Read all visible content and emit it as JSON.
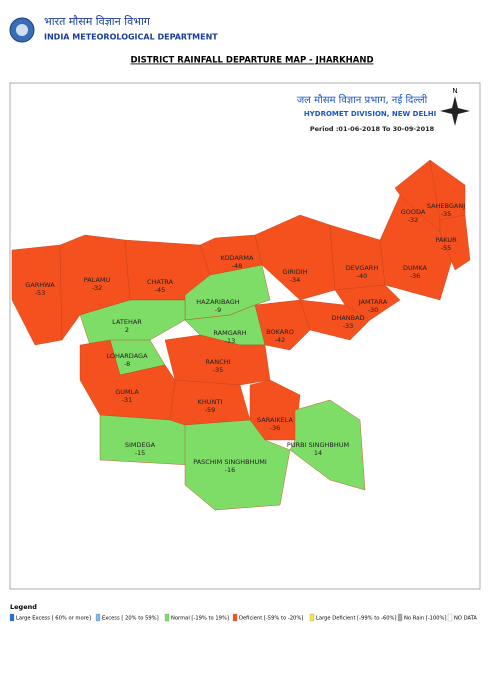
{
  "header": {
    "title_hindi": "भारत मौसम विज्ञान विभाग",
    "title": "INDIA METEOROLOGICAL DEPARTMENT"
  },
  "map_title": "DISTRICT RAINFALL DEPARTURE MAP - JHARKHAND",
  "division": {
    "hindi": "जल मौसम विज्ञान प्रभाग, नई दिल्ली",
    "name": "HYDROMET DIVISION, NEW DELHI",
    "period": "Period :01-06-2018 To 30-09-2018"
  },
  "compass": "N",
  "districts": [
    {
      "name": "GARHWA",
      "value": -53,
      "color": "#f4511e"
    },
    {
      "name": "PALAMU",
      "value": -32,
      "color": "#f4511e"
    },
    {
      "name": "CHATRA",
      "value": -45,
      "color": "#f4511e"
    },
    {
      "name": "KODARMA",
      "value": -48,
      "color": "#f4511e"
    },
    {
      "name": "GIRIDIH",
      "value": -34,
      "color": "#f4511e"
    },
    {
      "name": "DEVGARH",
      "value": -40,
      "color": "#f4511e"
    },
    {
      "name": "DUMKA",
      "value": -36,
      "color": "#f4511e"
    },
    {
      "name": "GOODA",
      "value": -32,
      "color": "#f4511e"
    },
    {
      "name": "SAHEBGANJ",
      "value": -35,
      "color": "#f4511e"
    },
    {
      "name": "PAKUR",
      "value": -55,
      "color": "#f4511e"
    },
    {
      "name": "JAMTARA",
      "value": -30,
      "color": "#f4511e"
    },
    {
      "name": "DHANBAD",
      "value": -33,
      "color": "#f4511e"
    },
    {
      "name": "BOKARO",
      "value": -42,
      "color": "#f4511e"
    },
    {
      "name": "HAZARIBAGH",
      "value": -9,
      "color": "#7ddd66"
    },
    {
      "name": "RAMGARH",
      "value": -13,
      "color": "#7ddd66"
    },
    {
      "name": "LATEHAR",
      "value": 2,
      "color": "#7ddd66"
    },
    {
      "name": "LOHARDAGA",
      "value": -8,
      "color": "#7ddd66"
    },
    {
      "name": "RANCHI",
      "value": -35,
      "color": "#f4511e"
    },
    {
      "name": "GUMLA",
      "value": -31,
      "color": "#f4511e"
    },
    {
      "name": "KHUNTI",
      "value": -59,
      "color": "#f4511e"
    },
    {
      "name": "SARAIKELA",
      "value": -36,
      "color": "#f4511e"
    },
    {
      "name": "PURBI SINGHBHUM",
      "value": 14,
      "color": "#7ddd66"
    },
    {
      "name": "SIMDEGA",
      "value": -15,
      "color": "#7ddd66"
    },
    {
      "name": "PASCHIM SINGHBHUMI",
      "value": -16,
      "color": "#7ddd66"
    }
  ],
  "legend": {
    "title": "Legend",
    "items": [
      {
        "label": "Large Excess [ 60% or more]",
        "color": "#1e6fd0"
      },
      {
        "label": "Excess [ 20% to 59%]",
        "color": "#7ab8e8"
      },
      {
        "label": "Normal [-19% to 19%]",
        "color": "#7ddd66"
      },
      {
        "label": "Deficient [-59% to -20%]",
        "color": "#f4511e"
      },
      {
        "label": "Large Deficient [-99% to -60%]",
        "color": "#f5e642"
      },
      {
        "label": "No Rain [-100%]",
        "color": "#aaaaaa"
      },
      {
        "label": "NO DATA",
        "color": "#ffffff"
      }
    ]
  }
}
